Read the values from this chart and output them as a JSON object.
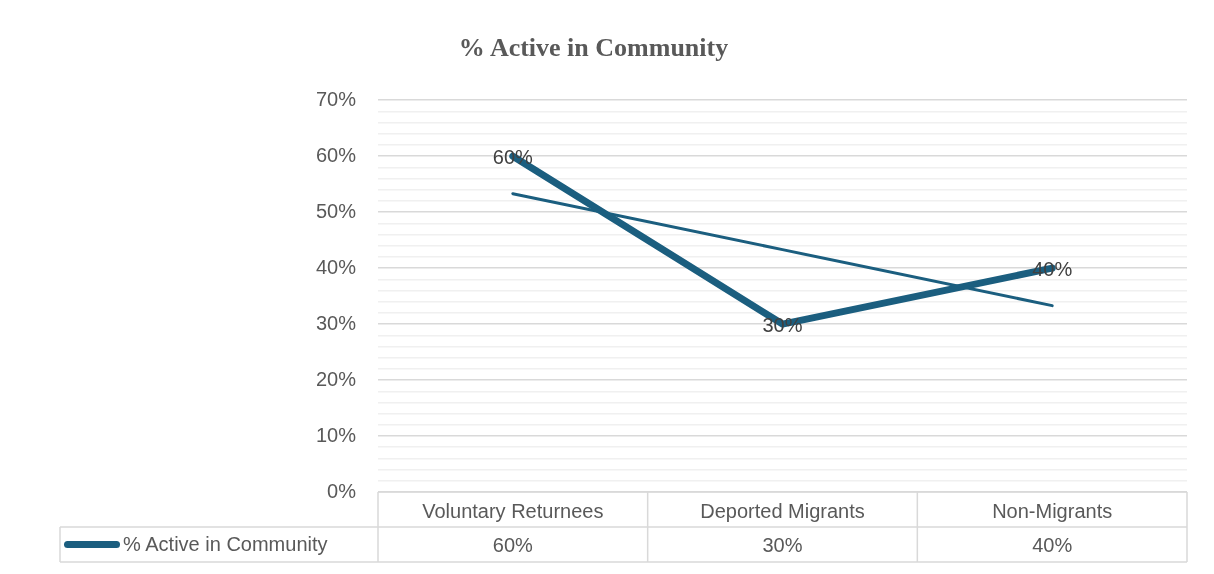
{
  "chart_data": {
    "type": "line",
    "title": "% Active in Community",
    "categories": [
      "Voluntary Returnees",
      "Deported Migrants",
      "Non-Migrants"
    ],
    "series": [
      {
        "name": "% Active in Community",
        "color": "#1b5e7f",
        "values": [
          60,
          30,
          40
        ],
        "value_labels": [
          "60%",
          "30%",
          "40%"
        ]
      },
      {
        "type": "line",
        "color": "#1b5e7f",
        "x": [
          "Voluntary Returnees",
          "Deported Migrants",
          "Non-Migrants"
        ],
        "values": [
          53.3,
          43.3,
          33.3
        ]
      }
    ],
    "ylim": [
      0,
      70
    ],
    "yticks": [
      {
        "value": 0,
        "label": "0%"
      },
      {
        "value": 2,
        "label": null
      },
      {
        "value": 4,
        "label": null
      },
      {
        "value": 6,
        "label": null
      },
      {
        "value": 8,
        "label": null
      },
      {
        "value": 10,
        "label": "10%"
      },
      {
        "value": 12,
        "label": null
      },
      {
        "value": 14,
        "label": null
      },
      {
        "value": 16,
        "label": null
      },
      {
        "value": 18,
        "label": null
      },
      {
        "value": 20,
        "label": "20%"
      },
      {
        "value": 22,
        "label": null
      },
      {
        "value": 24,
        "label": null
      },
      {
        "value": 26,
        "label": null
      },
      {
        "value": 28,
        "label": null
      },
      {
        "value": 30,
        "label": "30%"
      },
      {
        "value": 32,
        "label": null
      },
      {
        "value": 34,
        "label": null
      },
      {
        "value": 36,
        "label": null
      },
      {
        "value": 38,
        "label": null
      },
      {
        "value": 40,
        "label": "40%"
      },
      {
        "value": 42,
        "label": null
      },
      {
        "value": 44,
        "label": null
      },
      {
        "value": 46,
        "label": null
      },
      {
        "value": 48,
        "label": null
      },
      {
        "value": 50,
        "label": "50%"
      },
      {
        "value": 52,
        "label": null
      },
      {
        "value": 54,
        "label": null
      },
      {
        "value": 56,
        "label": null
      },
      {
        "value": 58,
        "label": null
      },
      {
        "value": 60,
        "label": "60%"
      },
      {
        "value": 62,
        "label": null
      },
      {
        "value": 64,
        "label": null
      },
      {
        "value": 66,
        "label": null
      },
      {
        "value": 68,
        "label": null
      },
      {
        "value": 70,
        "label": "70%"
      }
    ],
    "grid": "y",
    "legend": "bottom",
    "marker": "none",
    "line_style": "solid"
  }
}
